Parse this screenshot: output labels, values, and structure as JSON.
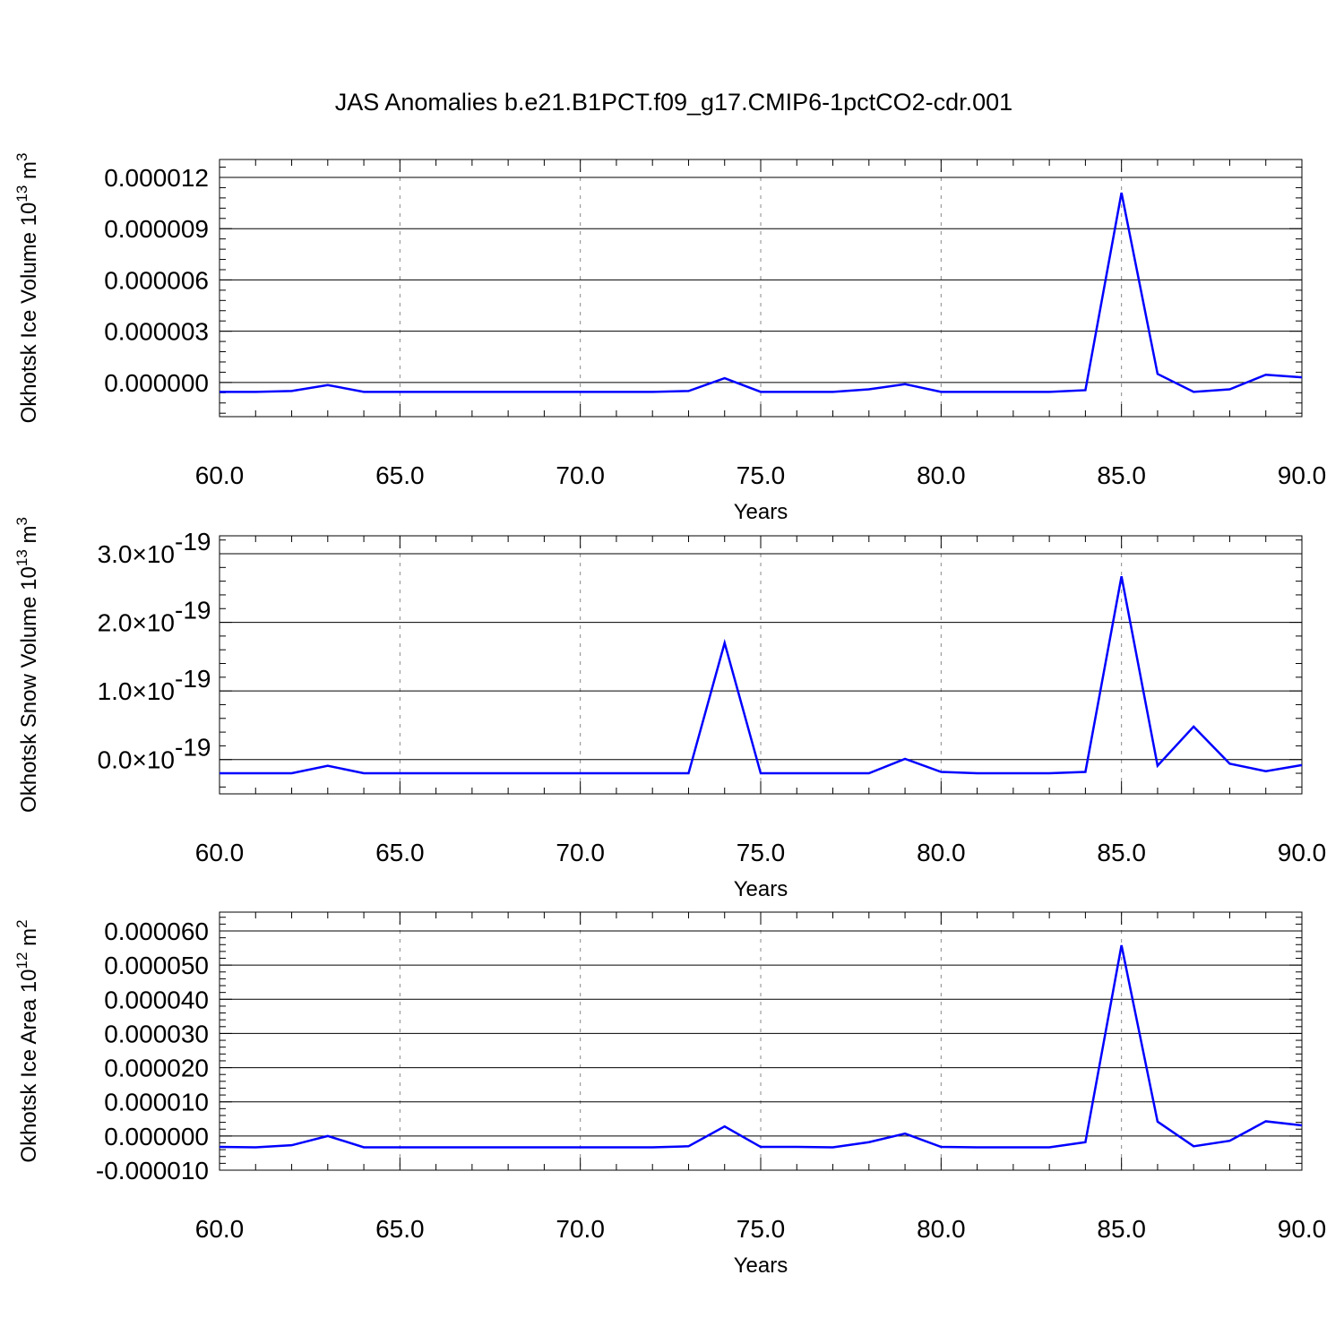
{
  "figure": {
    "title": "JAS Anomalies b.e21.B1PCT.f09_g17.CMIP6-1pctCO2-cdr.001"
  },
  "chart_data": [
    {
      "type": "line",
      "xlabel": "Years",
      "ylabel": "Okhotsk Ice Volume 10",
      "ylabel_exp": "13",
      "ylabel_unit": " m",
      "ylabel_unit_exp": "3",
      "xlim": [
        60,
        90
      ],
      "ylim": [
        -2e-06,
        1.2e-05
      ],
      "xticks": [
        60,
        65,
        70,
        75,
        80,
        85,
        90
      ],
      "xtick_labels": [
        "60.0",
        "65.0",
        "70.0",
        "75.0",
        "80.0",
        "85.0",
        "90.0"
      ],
      "yticks": [
        0,
        3e-06,
        6e-06,
        9e-06,
        1.2e-05
      ],
      "ytick_labels": [
        "0.000000",
        "0.000003",
        "0.000006",
        "0.000009",
        "0.000012"
      ],
      "ytick_exponents": [],
      "grid": "vertical dashed at major x ticks",
      "series": [
        {
          "color": "#0000ff",
          "x": [
            60,
            61,
            62,
            63,
            64,
            65,
            66,
            67,
            68,
            69,
            70,
            71,
            72,
            73,
            74,
            75,
            76,
            77,
            78,
            79,
            80,
            81,
            82,
            83,
            84,
            85,
            86,
            87,
            88,
            89,
            90
          ],
          "y": [
            -5.5e-07,
            -5.5e-07,
            -5e-07,
            -1.5e-07,
            -5.5e-07,
            -5.5e-07,
            -5.5e-07,
            -5.5e-07,
            -5.5e-07,
            -5.5e-07,
            -5.5e-07,
            -5.5e-07,
            -5.5e-07,
            -5e-07,
            2.5e-07,
            -5.5e-07,
            -5.5e-07,
            -5.5e-07,
            -4e-07,
            -1e-07,
            -5.5e-07,
            -5.5e-07,
            -5.5e-07,
            -5.5e-07,
            -4.5e-07,
            1.11e-05,
            5e-07,
            -5.5e-07,
            -4e-07,
            4.5e-07,
            3e-07
          ]
        }
      ]
    },
    {
      "type": "line",
      "xlabel": "Years",
      "ylabel": "Okhotsk Snow Volume 10",
      "ylabel_exp": "13",
      "ylabel_unit": " m",
      "ylabel_unit_exp": "3",
      "xlim": [
        60,
        90
      ],
      "ylim": [
        -5e-20,
        3e-19
      ],
      "xticks": [
        60,
        65,
        70,
        75,
        80,
        85,
        90
      ],
      "xtick_labels": [
        "60.0",
        "65.0",
        "70.0",
        "75.0",
        "80.0",
        "85.0",
        "90.0"
      ],
      "yticks": [
        0,
        1e-19,
        2e-19,
        3e-19
      ],
      "ytick_labels": [
        "0.0×10",
        "1.0×10",
        "2.0×10",
        "3.0×10"
      ],
      "ytick_exponents": [
        "-19",
        "-19",
        "-19",
        "-19"
      ],
      "grid": "vertical dashed at major x ticks",
      "series": [
        {
          "color": "#0000ff",
          "x": [
            60,
            61,
            62,
            63,
            64,
            65,
            66,
            67,
            68,
            69,
            70,
            71,
            72,
            73,
            74,
            75,
            76,
            77,
            78,
            79,
            80,
            81,
            82,
            83,
            84,
            85,
            86,
            87,
            88,
            89,
            90
          ],
          "y": [
            -2e-20,
            -2e-20,
            -2e-20,
            -9e-21,
            -2e-20,
            -2e-20,
            -2e-20,
            -2e-20,
            -2e-20,
            -2e-20,
            -2e-20,
            -2e-20,
            -2e-20,
            -2e-20,
            1.7e-19,
            -2e-20,
            -2e-20,
            -2e-20,
            -2e-20,
            1e-21,
            -1.8e-20,
            -2e-20,
            -2e-20,
            -2e-20,
            -1.8e-20,
            2.67e-19,
            -9e-21,
            4.8e-20,
            -6e-21,
            -1.7e-20,
            -8e-21
          ]
        }
      ]
    },
    {
      "type": "line",
      "xlabel": "Years",
      "ylabel": "Okhotsk Ice Area 10",
      "ylabel_exp": "12",
      "ylabel_unit": " m",
      "ylabel_unit_exp": "2",
      "xlim": [
        60,
        90
      ],
      "ylim": [
        -1e-05,
        6e-05
      ],
      "xticks": [
        60,
        65,
        70,
        75,
        80,
        85,
        90
      ],
      "xtick_labels": [
        "60.0",
        "65.0",
        "70.0",
        "75.0",
        "80.0",
        "85.0",
        "90.0"
      ],
      "yticks": [
        -1e-05,
        0,
        1e-05,
        2e-05,
        3e-05,
        4e-05,
        5e-05,
        6e-05
      ],
      "ytick_labels": [
        "-0.000010",
        "0.000000",
        "0.000010",
        "0.000020",
        "0.000030",
        "0.000040",
        "0.000050",
        "0.000060"
      ],
      "ytick_exponents": [],
      "grid": "vertical dashed at major x ticks",
      "series": [
        {
          "color": "#0000ff",
          "x": [
            60,
            61,
            62,
            63,
            64,
            65,
            66,
            67,
            68,
            69,
            70,
            71,
            72,
            73,
            74,
            75,
            76,
            77,
            78,
            79,
            80,
            81,
            82,
            83,
            84,
            85,
            86,
            87,
            88,
            89,
            90
          ],
          "y": [
            -3.2e-06,
            -3.3e-06,
            -2.7e-06,
            0.0,
            -3.3e-06,
            -3.3e-06,
            -3.3e-06,
            -3.3e-06,
            -3.3e-06,
            -3.3e-06,
            -3.3e-06,
            -3.3e-06,
            -3.3e-06,
            -3e-06,
            2.8e-06,
            -3.2e-06,
            -3.2e-06,
            -3.3e-06,
            -1.8e-06,
            7e-07,
            -3.2e-06,
            -3.3e-06,
            -3.3e-06,
            -3.3e-06,
            -1.8e-06,
            5.58e-05,
            4.2e-06,
            -3e-06,
            -1.4e-06,
            4.3e-06,
            3.1e-06
          ]
        }
      ]
    }
  ]
}
